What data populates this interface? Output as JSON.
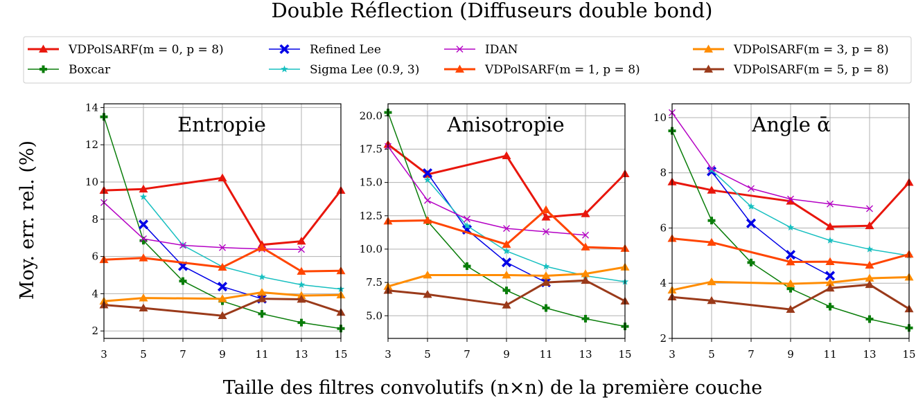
{
  "chart_data": {
    "type": "line",
    "title": "Double Réflection (Diffuseurs double bond)",
    "xlabel": "Taille des filtres convolutifs (n×n) de la première couche",
    "ylabel": "Moy. err. rel. (%)",
    "x": [
      3,
      5,
      7,
      9,
      11,
      13,
      15
    ],
    "xticks": [
      "3",
      "5",
      "7",
      "9",
      "11",
      "13",
      "15"
    ],
    "grid": true,
    "legend_placement": "top, above panels, 4 columns",
    "legend": [
      {
        "label": "VDPolSARF(m = 0, p = 8)",
        "color": "#e8160c",
        "marker": "triangle",
        "width": 3
      },
      {
        "label": "Boxcar",
        "color": "#0a7d0a",
        "marker": "plus",
        "width": 1.5
      },
      {
        "label": "Refined Lee",
        "color": "#0000e6",
        "marker": "x-thick",
        "width": 1.5
      },
      {
        "label": "Sigma Lee (0.9, 3)",
        "color": "#17bfc0",
        "marker": "star",
        "width": 1.5
      },
      {
        "label": "IDAN",
        "color": "#b400c4",
        "marker": "x",
        "width": 1.5
      },
      {
        "label": "VDPolSARF(m = 1, p = 8)",
        "color": "#ff4500",
        "marker": "triangle",
        "width": 3
      },
      {
        "label": "VDPolSARF(m = 3, p = 8)",
        "color": "#ff8c00",
        "marker": "triangle",
        "width": 3
      },
      {
        "label": "VDPolSARF(m = 5, p = 8)",
        "color": "#9a3a1a",
        "marker": "triangle",
        "width": 3
      }
    ],
    "panels": [
      {
        "title": "Entropie",
        "ylim": [
          1.6,
          14.2
        ],
        "yticks": [
          2,
          4,
          6,
          8,
          10,
          12,
          14
        ],
        "series": [
          {
            "name": "VDPolSARF(m = 0, p = 8)",
            "x": [
              3,
              5,
              9,
              11,
              13,
              15
            ],
            "y": [
              9.55,
              9.62,
              10.22,
              6.63,
              6.82,
              9.55
            ]
          },
          {
            "name": "Boxcar",
            "x": [
              3,
              5,
              7,
              9,
              11,
              13,
              15
            ],
            "y": [
              13.5,
              6.85,
              4.68,
              3.6,
              2.92,
              2.45,
              2.13
            ]
          },
          {
            "name": "Refined Lee",
            "x": [
              5,
              7,
              9,
              11
            ],
            "y": [
              7.72,
              5.48,
              4.38,
              3.73
            ]
          },
          {
            "name": "Sigma Lee (0.9, 3)",
            "x": [
              5,
              7,
              9,
              11,
              13,
              15
            ],
            "y": [
              9.2,
              6.6,
              5.45,
              4.9,
              4.48,
              4.25
            ]
          },
          {
            "name": "IDAN",
            "x": [
              3,
              5,
              7,
              9,
              11,
              13
            ],
            "y": [
              8.9,
              6.95,
              6.6,
              6.48,
              6.4,
              6.38
            ]
          },
          {
            "name": "VDPolSARF(m = 1, p = 8)",
            "x": [
              3,
              5,
              9,
              11,
              13,
              15
            ],
            "y": [
              5.83,
              5.92,
              5.42,
              6.48,
              5.2,
              5.23
            ]
          },
          {
            "name": "VDPolSARF(m = 3, p = 8)",
            "x": [
              3,
              5,
              9,
              11,
              13,
              15
            ],
            "y": [
              3.6,
              3.77,
              3.73,
              4.07,
              3.9,
              3.93
            ]
          },
          {
            "name": "VDPolSARF(m = 5, p = 8)",
            "x": [
              3,
              5,
              9,
              11,
              13,
              15
            ],
            "y": [
              3.4,
              3.23,
              2.82,
              3.73,
              3.7,
              3.0
            ]
          }
        ]
      },
      {
        "title": "Anisotropie",
        "ylim": [
          3.3,
          20.9
        ],
        "yticks": [
          5.0,
          7.5,
          10.0,
          12.5,
          15.0,
          17.5,
          20.0
        ],
        "yticklabels": [
          "5.0",
          "7.5",
          "10.0",
          "12.5",
          "15.0",
          "17.5",
          "20.0"
        ],
        "series": [
          {
            "name": "VDPolSARF(m = 0, p = 8)",
            "x": [
              3,
              5,
              9,
              11,
              13,
              15
            ],
            "y": [
              17.85,
              15.6,
              17.0,
              12.4,
              12.65,
              15.65
            ]
          },
          {
            "name": "Boxcar",
            "x": [
              3,
              5,
              7,
              9,
              11,
              13,
              15
            ],
            "y": [
              20.25,
              12.1,
              8.72,
              6.9,
              5.58,
              4.78,
              4.2
            ]
          },
          {
            "name": "Refined Lee",
            "x": [
              5,
              7,
              9,
              11
            ],
            "y": [
              15.7,
              11.45,
              9.0,
              7.5
            ]
          },
          {
            "name": "Sigma Lee (0.9, 3)",
            "x": [
              5,
              7,
              9,
              11,
              13,
              15
            ],
            "y": [
              15.2,
              11.75,
              9.85,
              8.7,
              8.0,
              7.55
            ]
          },
          {
            "name": "IDAN",
            "x": [
              3,
              5,
              7,
              9,
              11,
              13
            ],
            "y": [
              17.7,
              13.65,
              12.25,
              11.55,
              11.3,
              11.05
            ]
          },
          {
            "name": "VDPolSARF(m = 1, p = 8)",
            "x": [
              3,
              5,
              9,
              11,
              13,
              15
            ],
            "y": [
              12.1,
              12.15,
              10.35,
              12.95,
              10.15,
              10.05
            ]
          },
          {
            "name": "VDPolSARF(m = 3, p = 8)",
            "x": [
              3,
              5,
              9,
              11,
              13,
              15
            ],
            "y": [
              7.2,
              8.05,
              8.05,
              8.0,
              8.15,
              8.65
            ]
          },
          {
            "name": "VDPolSARF(m = 5, p = 8)",
            "x": [
              3,
              5,
              9,
              11,
              13,
              15
            ],
            "y": [
              6.9,
              6.6,
              5.8,
              7.5,
              7.65,
              6.1
            ]
          }
        ]
      },
      {
        "title": "Angle ᾱ",
        "ylim": [
          2.0,
          10.5
        ],
        "yticks": [
          2,
          4,
          6,
          8,
          10
        ],
        "series": [
          {
            "name": "VDPolSARF(m = 0, p = 8)",
            "x": [
              3,
              5,
              9,
              11,
              13,
              15
            ],
            "y": [
              7.67,
              7.37,
              6.97,
              6.05,
              6.08,
              7.65
            ]
          },
          {
            "name": "Boxcar",
            "x": [
              3,
              5,
              7,
              9,
              11,
              13,
              15
            ],
            "y": [
              9.52,
              6.27,
              4.75,
              3.8,
              3.15,
              2.7,
              2.38
            ]
          },
          {
            "name": "Refined Lee",
            "x": [
              5,
              7,
              9,
              11
            ],
            "y": [
              8.05,
              6.17,
              5.03,
              4.27
            ]
          },
          {
            "name": "Sigma Lee (0.9, 3)",
            "x": [
              5,
              7,
              9,
              11,
              13,
              15
            ],
            "y": [
              8.1,
              6.78,
              6.02,
              5.55,
              5.23,
              5.0
            ]
          },
          {
            "name": "IDAN",
            "x": [
              3,
              5,
              7,
              9,
              11,
              13
            ],
            "y": [
              10.18,
              8.15,
              7.43,
              7.05,
              6.87,
              6.7
            ]
          },
          {
            "name": "VDPolSARF(m = 1, p = 8)",
            "x": [
              3,
              5,
              9,
              11,
              13,
              15
            ],
            "y": [
              5.62,
              5.48,
              4.77,
              4.78,
              4.65,
              5.05
            ]
          },
          {
            "name": "VDPolSARF(m = 3, p = 8)",
            "x": [
              3,
              5,
              9,
              11,
              13,
              15
            ],
            "y": [
              3.75,
              4.05,
              3.98,
              4.02,
              4.18,
              4.22
            ]
          },
          {
            "name": "VDPolSARF(m = 5, p = 8)",
            "x": [
              3,
              5,
              9,
              11,
              13,
              15
            ],
            "y": [
              3.5,
              3.37,
              3.05,
              3.82,
              3.95,
              3.07
            ]
          }
        ]
      }
    ]
  }
}
